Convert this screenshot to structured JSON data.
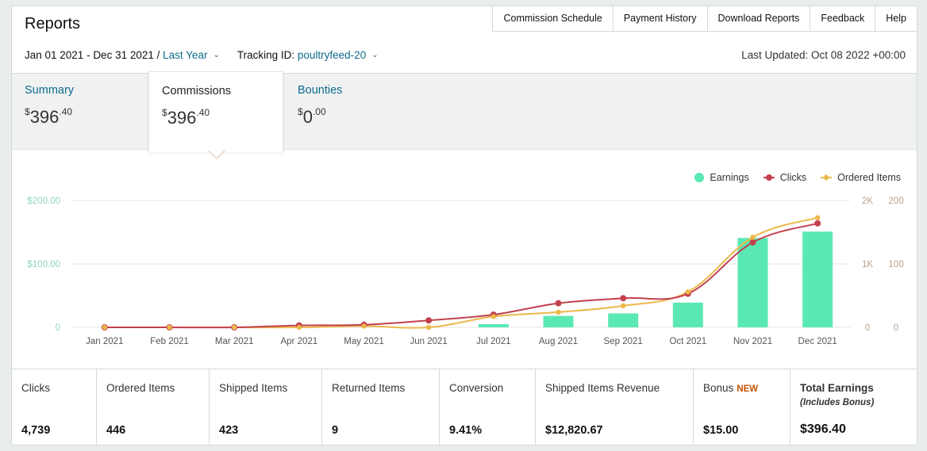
{
  "header": {
    "title": "Reports",
    "nav": [
      "Commission Schedule",
      "Payment History",
      "Download Reports",
      "Feedback",
      "Help"
    ],
    "date_range": "Jan 01 2021 - Dec 31 2021 /",
    "period_link": "Last Year",
    "tracking_prefix": "Tracking ID:",
    "tracking_id": "poultryfeed-20",
    "last_updated": "Last Updated: Oct 08 2022 +00:00"
  },
  "tabs": [
    {
      "label": "Summary",
      "currency": "$",
      "whole": "396",
      "cents": ".40",
      "active": false
    },
    {
      "label": "Commissions",
      "currency": "$",
      "whole": "396",
      "cents": ".40",
      "active": true
    },
    {
      "label": "Bounties",
      "currency": "$",
      "whole": "0",
      "cents": ".00",
      "active": false
    }
  ],
  "colors": {
    "earnings": "#5ae8b4",
    "clicks": "#c2414e",
    "ordered": "#ebb84a",
    "left_axis": "#8fd6ba",
    "right_axis": "#b9a18b"
  },
  "chart_data": {
    "type": "bar",
    "categories": [
      "Jan 2021",
      "Feb 2021",
      "Mar 2021",
      "Apr 2021",
      "May 2021",
      "Jun 2021",
      "Jul 2021",
      "Aug 2021",
      "Sep 2021",
      "Oct 2021",
      "Nov 2021",
      "Dec 2021"
    ],
    "series": [
      {
        "name": "Earnings",
        "type": "bar",
        "axis": "left",
        "values": [
          0,
          0,
          0,
          0,
          0,
          0,
          5,
          18,
          22,
          39,
          141,
          151
        ]
      },
      {
        "name": "Clicks",
        "type": "line",
        "axis": "right-outer",
        "values": [
          0,
          0,
          0,
          30,
          40,
          110,
          200,
          380,
          460,
          530,
          1340,
          1640
        ]
      },
      {
        "name": "Ordered Items",
        "type": "line",
        "axis": "right-inner",
        "values": [
          0,
          0,
          0,
          0,
          2,
          0,
          17,
          24,
          34,
          56,
          142,
          173
        ]
      }
    ],
    "left_axis": {
      "ticks": [
        "0",
        "$100.00",
        "$200.00"
      ],
      "ylim": [
        0,
        200
      ]
    },
    "right_outer_axis": {
      "ticks": [
        "0",
        "1K",
        "2K"
      ],
      "ylim": [
        0,
        2000
      ]
    },
    "right_inner_axis": {
      "ticks": [
        "0",
        "100",
        "200"
      ],
      "ylim": [
        0,
        200
      ]
    },
    "legend": [
      "Earnings",
      "Clicks",
      "Ordered Items"
    ],
    "legend_position": "top-right",
    "grid": true
  },
  "stats": [
    {
      "label": "Clicks",
      "value": "4,739"
    },
    {
      "label": "Ordered Items",
      "value": "446"
    },
    {
      "label": "Shipped Items",
      "value": "423"
    },
    {
      "label": "Returned Items",
      "value": "9"
    },
    {
      "label": "Conversion",
      "value": "9.41%"
    },
    {
      "label": "Shipped Items Revenue",
      "value": "$12,820.67"
    },
    {
      "label": "Bonus",
      "badge": "NEW",
      "value": "$15.00"
    },
    {
      "label": "Total Earnings",
      "sub": "(Includes Bonus)",
      "value": "$396.40"
    }
  ]
}
